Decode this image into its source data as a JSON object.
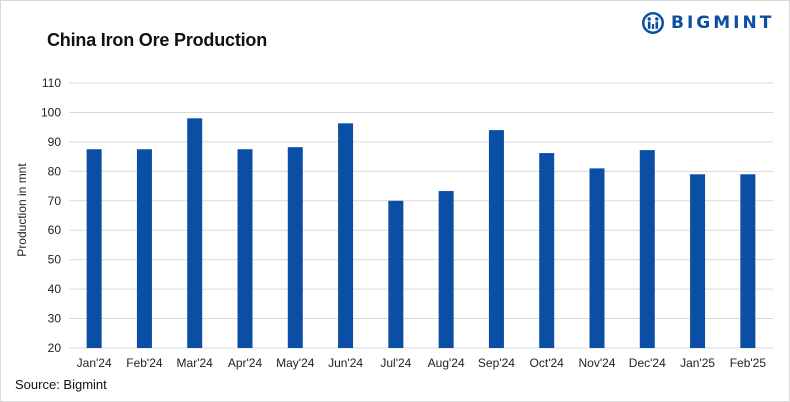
{
  "header": {
    "title": "China Iron Ore Production",
    "brand": "BIGMINT"
  },
  "footer": {
    "source": "Source: Bigmint"
  },
  "colors": {
    "bar": "#0a4ea6",
    "brand": "#0b4fa3",
    "grid": "#d9d9d9"
  },
  "chart_data": {
    "type": "bar",
    "title": "China Iron Ore Production",
    "xlabel": "",
    "ylabel": "Production in mnt",
    "ylim": [
      20,
      110
    ],
    "yticks": [
      20,
      30,
      40,
      50,
      60,
      70,
      80,
      90,
      100,
      110
    ],
    "grid": "horizontal",
    "categories": [
      "Jan'24",
      "Feb'24",
      "Mar'24",
      "Apr'24",
      "May'24",
      "Jun'24",
      "Jul'24",
      "Aug'24",
      "Sep'24",
      "Oct'24",
      "Nov'24",
      "Dec'24",
      "Jan'25",
      "Feb'25"
    ],
    "values": [
      87.5,
      87.5,
      98.0,
      87.5,
      88.2,
      96.3,
      70.0,
      73.3,
      94.0,
      86.2,
      81.0,
      87.2,
      79.0,
      79.0
    ]
  }
}
